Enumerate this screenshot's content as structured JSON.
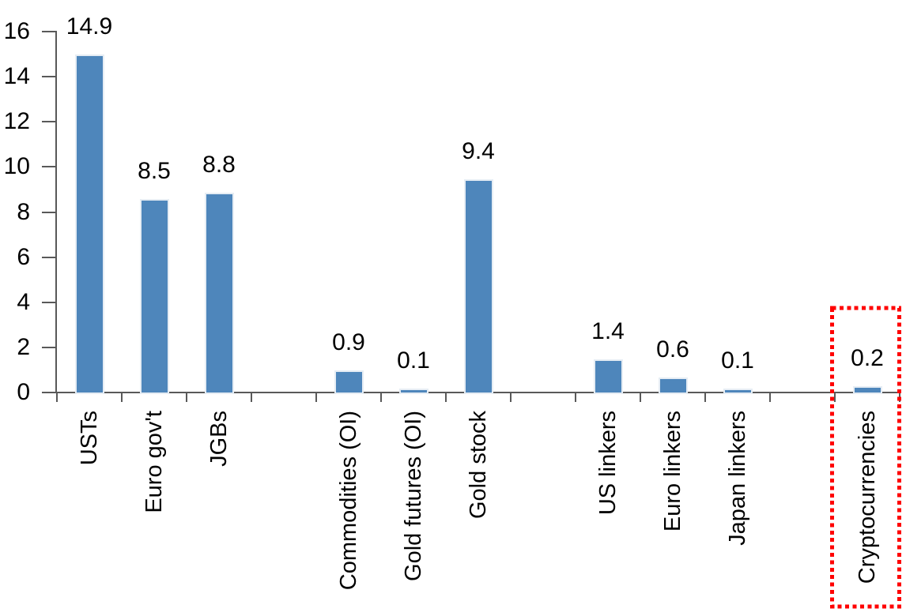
{
  "chart_data": {
    "type": "bar",
    "title": "",
    "xlabel": "",
    "ylabel": "",
    "categories": [
      "USTs",
      "Euro gov't",
      "JGBs",
      "Commodities (OI)",
      "Gold futures (OI)",
      "Gold stock",
      "US linkers",
      "Euro linkers",
      "Japan linkers",
      "Cryptocurrencies"
    ],
    "values": [
      14.9,
      8.5,
      8.8,
      0.9,
      0.1,
      9.4,
      1.4,
      0.6,
      0.1,
      0.2
    ],
    "value_labels": [
      "14.9",
      "8.5",
      "8.8",
      "0.9",
      "0.1",
      "9.4",
      "1.4",
      "0.6",
      "0.1",
      "0.2"
    ],
    "slot_of_category": [
      0,
      1,
      2,
      4,
      5,
      6,
      8,
      9,
      10,
      12
    ],
    "num_slots": 13,
    "ylim": [
      0,
      16
    ],
    "yticks": [
      0,
      2,
      4,
      6,
      8,
      10,
      12,
      14,
      16
    ],
    "grid": false,
    "legend": false,
    "bar_color": "#4E86BB",
    "bar_halo_color": "#E6EDF4",
    "axis_color": "#595959",
    "text_color": "#000000",
    "highlight": {
      "category": "Cryptocurrencies",
      "shape": "dotted-rectangle",
      "color": "#FF0000"
    }
  }
}
